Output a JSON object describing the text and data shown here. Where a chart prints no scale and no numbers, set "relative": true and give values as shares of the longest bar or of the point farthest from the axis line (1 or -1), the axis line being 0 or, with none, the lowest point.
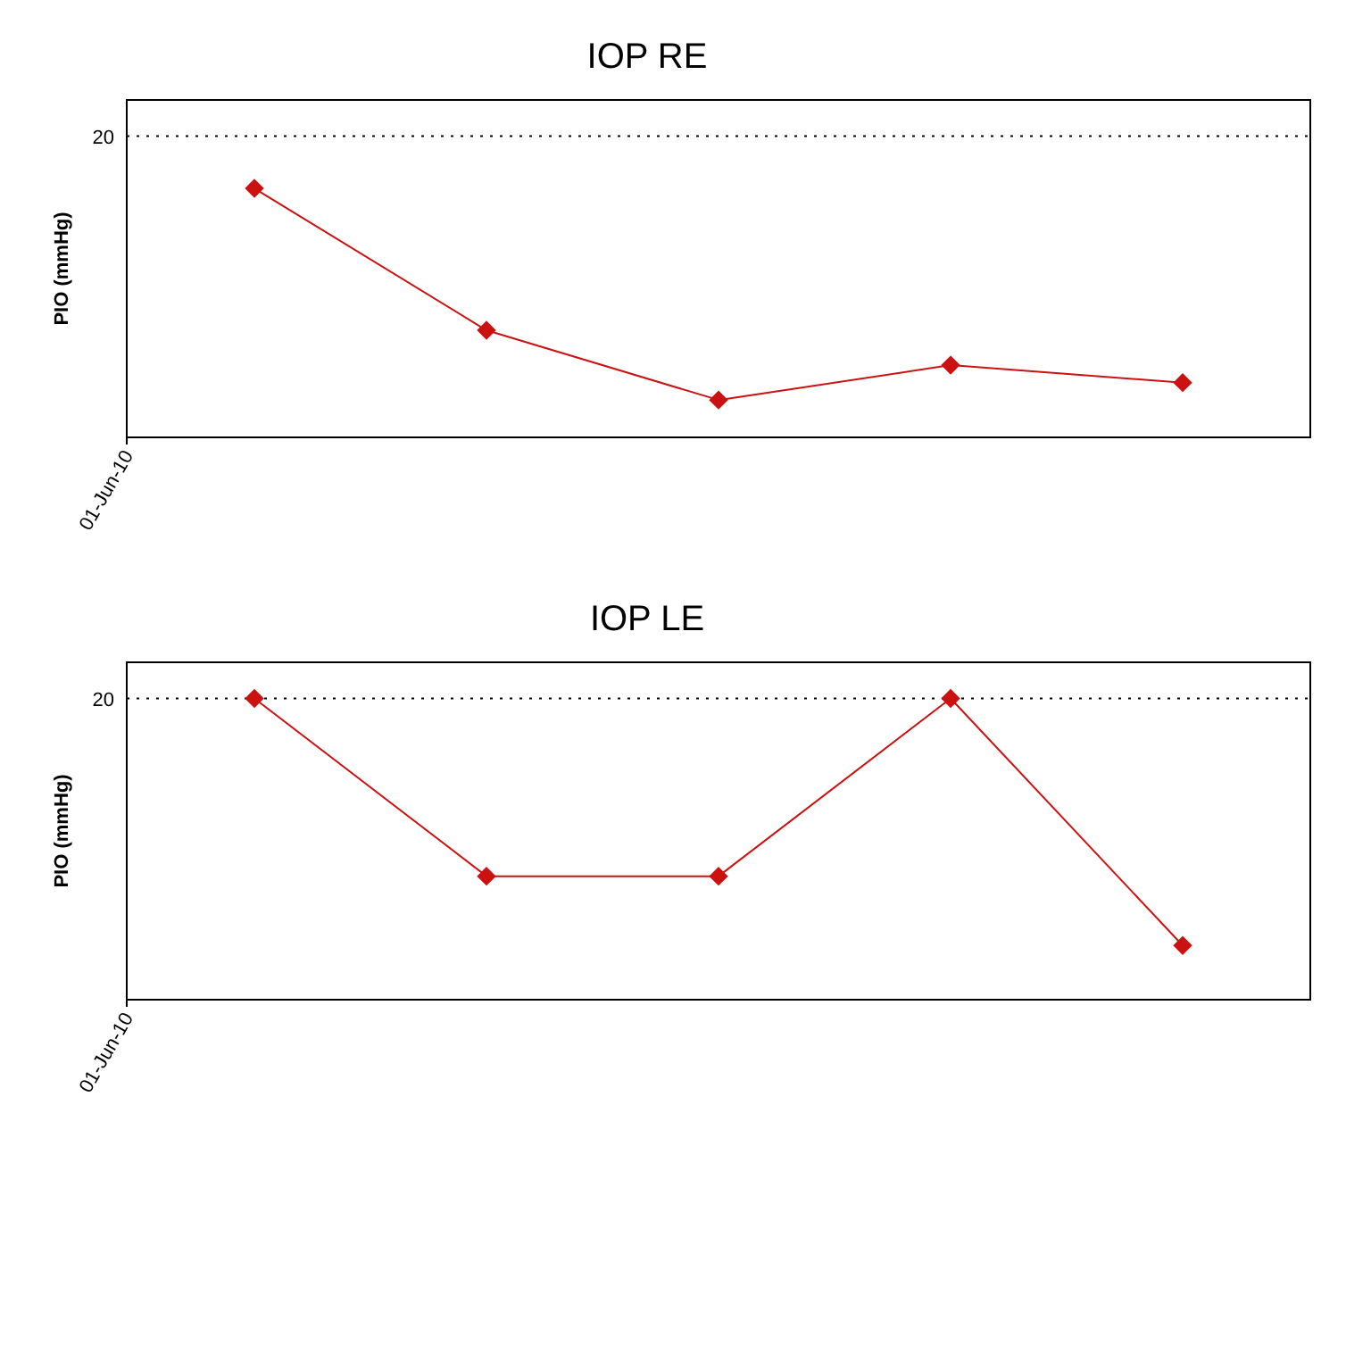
{
  "chart_data": [
    {
      "type": "line",
      "title": "IOP RE",
      "ylabel": "PIO (mmHg)",
      "relative": true,
      "categories": [
        null,
        null,
        null,
        null,
        null
      ],
      "series": [
        {
          "color": "#cc1111",
          "values": [
            1,
            0.43,
            0.15,
            0.29,
            0.22
          ]
        }
      ],
      "ref_lines": [
        {
          "axis": "y",
          "value": 1.21,
          "line_style": "dotted",
          "color": "#000000"
        }
      ],
      "annotations": [
        "20",
        "01-Jun-10"
      ],
      "marker": "diamond",
      "line_style": "solid"
    },
    {
      "type": "line",
      "title": "IOP LE",
      "ylabel": "PIO (mmHg)",
      "relative": true,
      "categories": [
        null,
        null,
        null,
        null,
        null
      ],
      "series": [
        {
          "color": "#cc1111",
          "values": [
            1,
            0.41,
            0.41,
            1,
            0.18
          ]
        }
      ],
      "ref_lines": [
        {
          "axis": "y",
          "value": 1,
          "line_style": "dotted",
          "color": "#000000"
        }
      ],
      "annotations": [
        "20",
        "01-Jun-10"
      ],
      "marker": "diamond",
      "line_style": "solid"
    }
  ]
}
